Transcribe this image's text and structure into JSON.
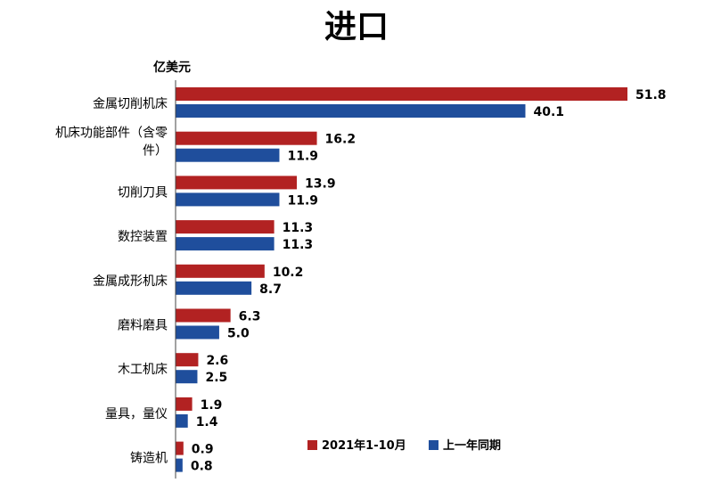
{
  "chart_data": {
    "type": "bar",
    "orientation": "horizontal",
    "title": "进口",
    "unit_label": "亿美元",
    "categories": [
      "金属切削机床",
      "机床功能部件（含零件）",
      "切削刀具",
      "数控装置",
      "金属成形机床",
      "磨料磨具",
      "木工机床",
      "量具，量仪",
      "铸造机"
    ],
    "series": [
      {
        "name": "2021年1-10月",
        "color": "#b22222",
        "values": [
          51.8,
          16.2,
          13.9,
          11.3,
          10.2,
          6.3,
          2.6,
          1.9,
          0.9
        ]
      },
      {
        "name": "上一年同期",
        "color": "#1f4e9c",
        "values": [
          40.1,
          11.9,
          11.9,
          11.3,
          8.7,
          5.0,
          2.5,
          1.4,
          0.8
        ]
      }
    ],
    "value_labels": [
      [
        "51.8",
        "16.2",
        "13.9",
        "11.3",
        "10.2",
        "6.3",
        "2.6",
        "1.9",
        "0.9"
      ],
      [
        "40.1",
        "11.9",
        "11.9",
        "11.3",
        "8.7",
        "5.0",
        "2.5",
        "1.4",
        "0.8"
      ]
    ],
    "xlim": [
      0,
      55
    ],
    "grid": false,
    "legend_position": "bottom-right"
  }
}
